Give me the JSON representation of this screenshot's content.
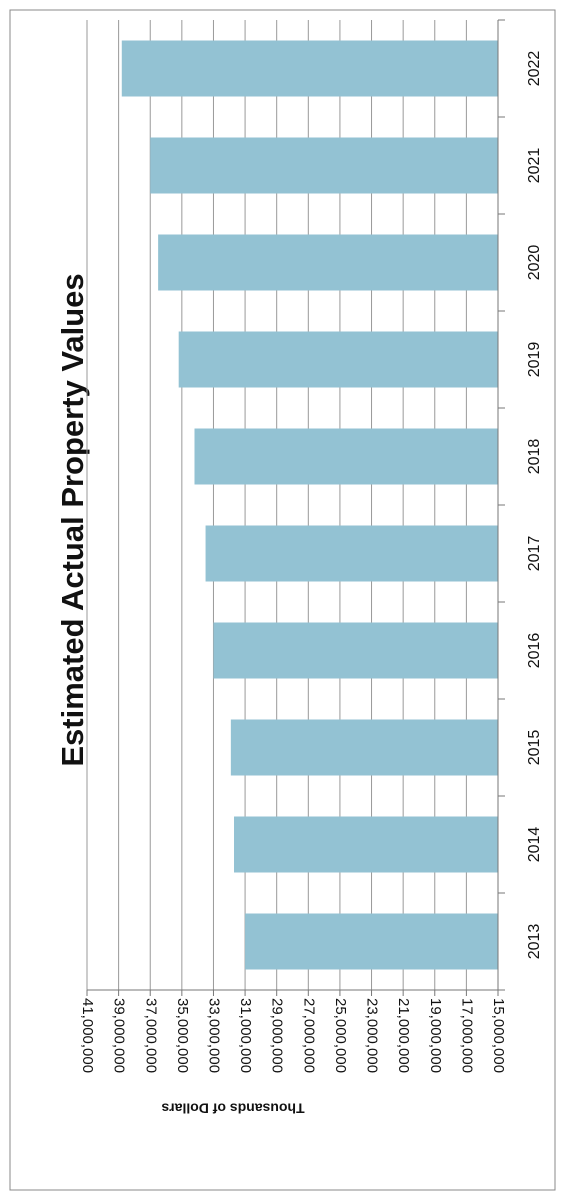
{
  "chart_data": {
    "type": "bar",
    "orientation": "horizontal",
    "title": "Estimated Actual Property Values",
    "y_axis_label": "Thousands of Dollars",
    "categories": [
      "2013",
      "2014",
      "2015",
      "2016",
      "2017",
      "2018",
      "2019",
      "2020",
      "2021",
      "2022"
    ],
    "values": [
      31000000,
      31700000,
      31900000,
      33000000,
      33500000,
      34200000,
      35200000,
      36500000,
      37000000,
      38800000
    ],
    "color": "#93c2d3",
    "ylim": [
      15000000,
      41000000
    ],
    "yticks": [
      {
        "value": 15000000,
        "label": "15,000,000"
      },
      {
        "value": 17000000,
        "label": "17,000,000"
      },
      {
        "value": 19000000,
        "label": "19,000,000"
      },
      {
        "value": 21000000,
        "label": "21,000,000"
      },
      {
        "value": 23000000,
        "label": "23,000,000"
      },
      {
        "value": 25000000,
        "label": "25,000,000"
      },
      {
        "value": 27000000,
        "label": "27,000,000"
      },
      {
        "value": 29000000,
        "label": "29,000,000"
      },
      {
        "value": 31000000,
        "label": "31,000,000"
      },
      {
        "value": 33000000,
        "label": "33,000,000"
      },
      {
        "value": 35000000,
        "label": "35,000,000"
      },
      {
        "value": 37000000,
        "label": "37,000,000"
      },
      {
        "value": 39000000,
        "label": "39,000,000"
      },
      {
        "value": 41000000,
        "label": "41,000,000"
      }
    ],
    "grid": true
  }
}
